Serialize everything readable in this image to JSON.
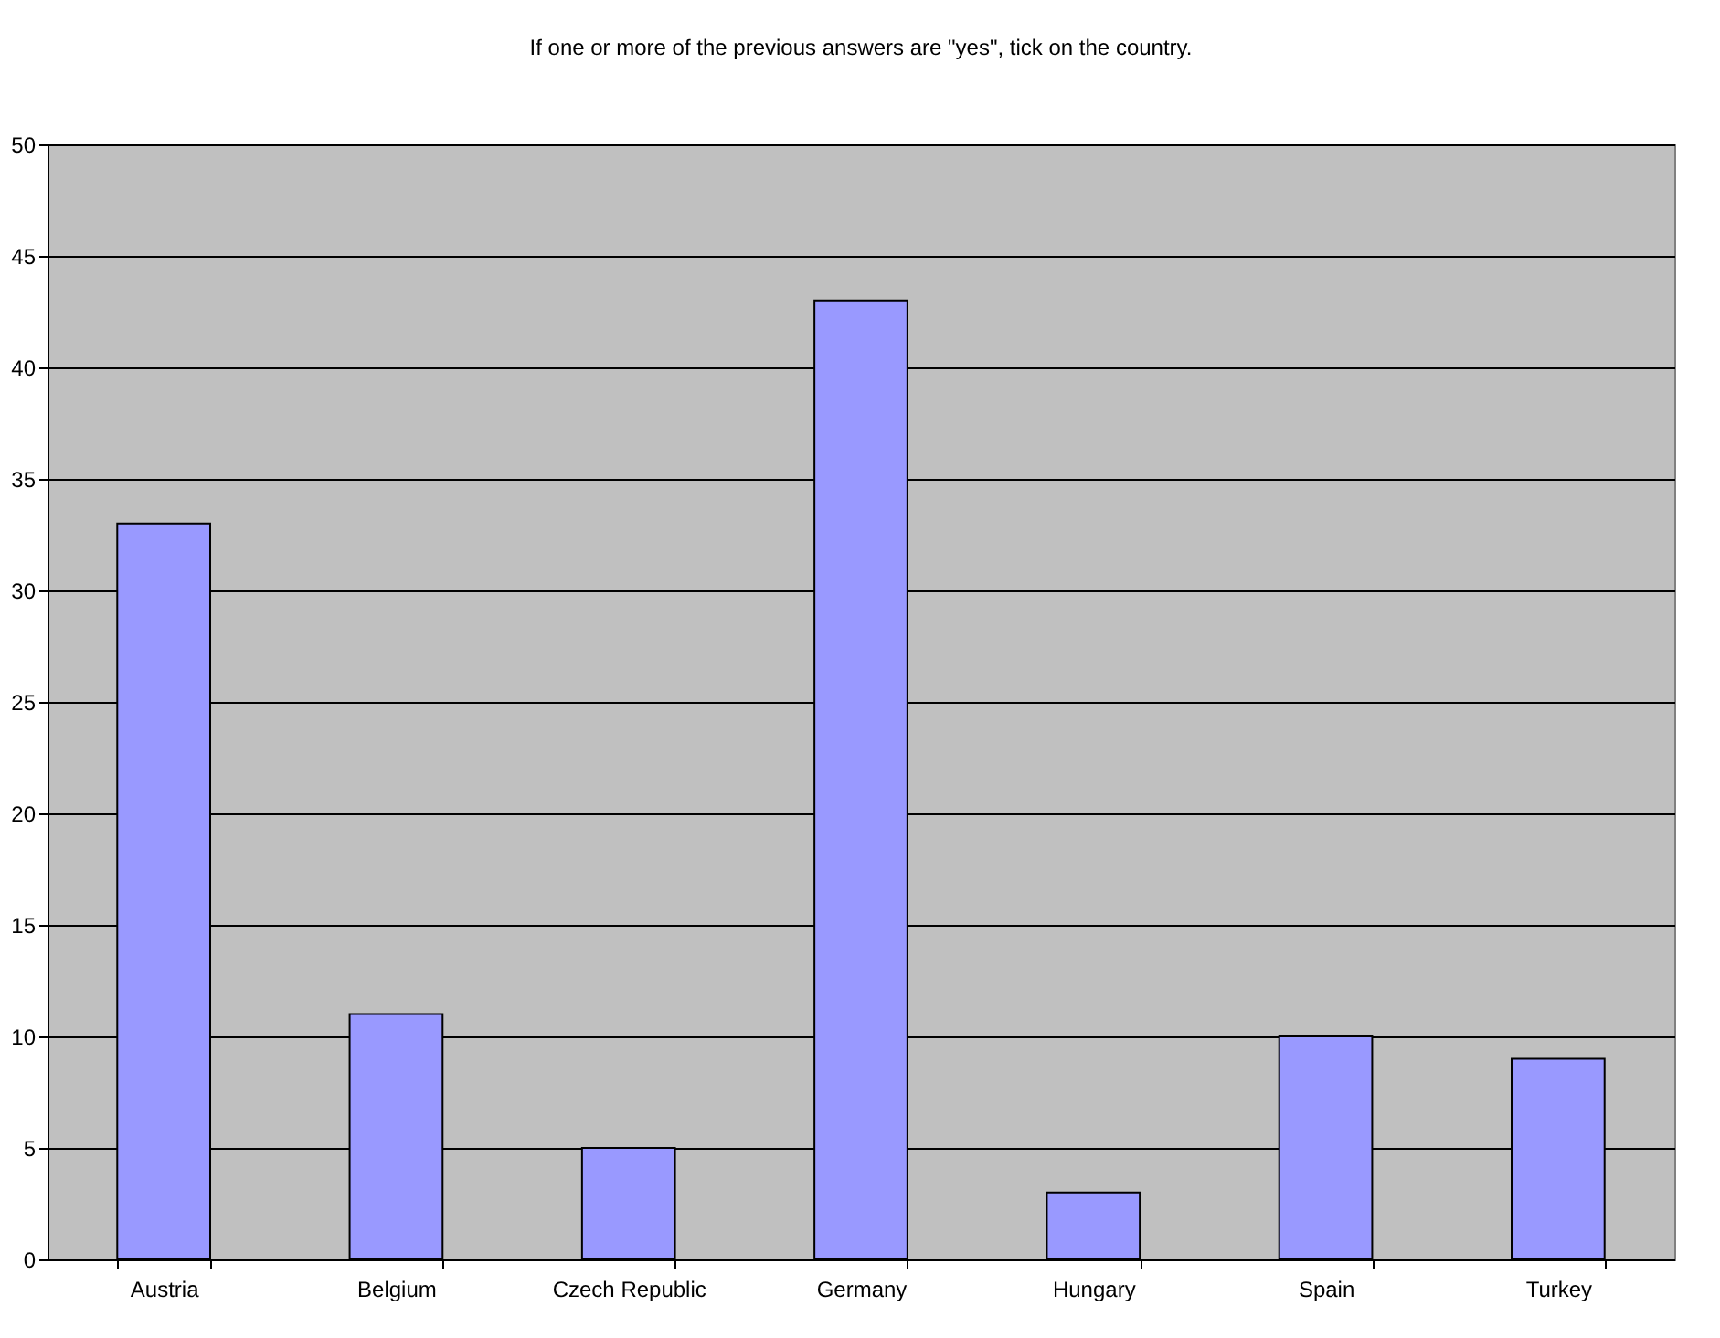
{
  "chart_data": {
    "type": "bar",
    "title": "If one or more of the previous answers are \"yes\", tick on the country.",
    "categories": [
      "Austria",
      "Belgium",
      "Czech Republic",
      "Germany",
      "Hungary",
      "Spain",
      "Turkey"
    ],
    "values": [
      33,
      11,
      5,
      43,
      3,
      10,
      9
    ],
    "color": "#9999ff",
    "ylim": [
      0,
      50
    ],
    "yticks": [
      0,
      5,
      10,
      15,
      20,
      25,
      30,
      35,
      40,
      45,
      50
    ],
    "grid": "y"
  }
}
